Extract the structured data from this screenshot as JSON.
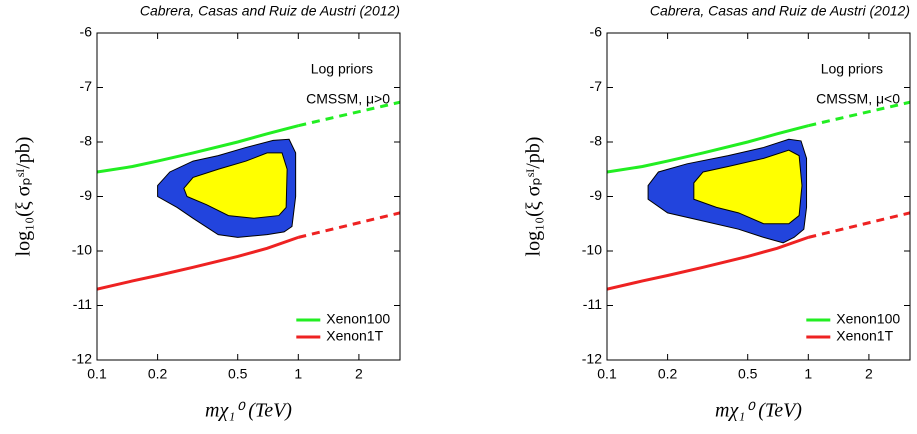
{
  "chart_data": [
    {
      "type": "line",
      "credit": "Cabrera, Casas and Ruiz de Austri (2012)",
      "annotations": [
        "Log priors",
        "CMSSM, μ>0"
      ],
      "xlabel": "mχ₁⁰ (TeV)",
      "ylabel": "log₁₀(ξ σₚˢᴵ/pb)",
      "xscale": "log",
      "xlim": [
        0.1,
        3.2
      ],
      "ylim": [
        -12,
        -6
      ],
      "xticks": [
        0.1,
        0.2,
        0.5,
        1,
        2
      ],
      "yticks": [
        -12,
        -11,
        -10,
        -9,
        -8,
        -7,
        -6
      ],
      "legend": "lower right",
      "series": [
        {
          "name": "Xenon100",
          "color": "#22ee22",
          "x": [
            0.1,
            0.15,
            0.2,
            0.3,
            0.5,
            0.7,
            1
          ],
          "values": [
            -8.55,
            -8.45,
            -8.35,
            -8.2,
            -8.0,
            -7.85,
            -7.7
          ],
          "extrapolated": {
            "x": [
              1,
              3.2
            ],
            "values": [
              -7.7,
              -7.27
            ]
          }
        },
        {
          "name": "Xenon1T",
          "color": "#ee2222",
          "x": [
            0.1,
            0.15,
            0.2,
            0.3,
            0.5,
            0.7,
            1
          ],
          "values": [
            -10.7,
            -10.55,
            -10.45,
            -10.3,
            -10.1,
            -9.95,
            -9.75
          ],
          "extrapolated": {
            "x": [
              1,
              3.2
            ],
            "values": [
              -9.75,
              -9.3
            ]
          }
        }
      ],
      "regions": [
        {
          "color": "#2244dd",
          "x": [
            0.2,
            0.23,
            0.3,
            0.4,
            0.55,
            0.75,
            0.9,
            0.97,
            0.97,
            0.93,
            0.85,
            0.7,
            0.5,
            0.4,
            0.3,
            0.25,
            0.2
          ],
          "values": [
            -8.8,
            -8.55,
            -8.35,
            -8.25,
            -8.1,
            -7.97,
            -7.95,
            -8.2,
            -9.0,
            -9.55,
            -9.65,
            -9.7,
            -9.75,
            -9.7,
            -9.4,
            -9.2,
            -9.0
          ]
        },
        {
          "color": "#ffff00",
          "x": [
            0.27,
            0.3,
            0.4,
            0.55,
            0.7,
            0.83,
            0.88,
            0.87,
            0.8,
            0.6,
            0.45,
            0.35,
            0.28
          ],
          "values": [
            -8.85,
            -8.65,
            -8.5,
            -8.35,
            -8.2,
            -8.2,
            -8.5,
            -9.2,
            -9.35,
            -9.4,
            -9.35,
            -9.15,
            -9.0
          ]
        }
      ]
    },
    {
      "type": "line",
      "credit": "Cabrera, Casas and Ruiz de Austri (2012)",
      "annotations": [
        "Log priors",
        "CMSSM, μ<0"
      ],
      "xlabel": "mχ₁⁰ (TeV)",
      "ylabel": "log₁₀(ξ σₚˢᴵ/pb)",
      "xscale": "log",
      "xlim": [
        0.1,
        3.2
      ],
      "ylim": [
        -12,
        -6
      ],
      "xticks": [
        0.1,
        0.2,
        0.5,
        1,
        2
      ],
      "yticks": [
        -12,
        -11,
        -10,
        -9,
        -8,
        -7,
        -6
      ],
      "legend": "lower right",
      "series": [
        {
          "name": "Xenon100",
          "color": "#22ee22",
          "x": [
            0.1,
            0.15,
            0.2,
            0.3,
            0.5,
            0.7,
            1
          ],
          "values": [
            -8.55,
            -8.45,
            -8.35,
            -8.2,
            -8.0,
            -7.85,
            -7.7
          ],
          "extrapolated": {
            "x": [
              1,
              3.2
            ],
            "values": [
              -7.7,
              -7.27
            ]
          }
        },
        {
          "name": "Xenon1T",
          "color": "#ee2222",
          "x": [
            0.1,
            0.15,
            0.2,
            0.3,
            0.5,
            0.7,
            1
          ],
          "values": [
            -10.7,
            -10.55,
            -10.45,
            -10.3,
            -10.1,
            -9.95,
            -9.75
          ],
          "extrapolated": {
            "x": [
              1,
              3.2
            ],
            "values": [
              -9.75,
              -9.3
            ]
          }
        }
      ],
      "regions": [
        {
          "color": "#2244dd",
          "x": [
            0.16,
            0.18,
            0.25,
            0.4,
            0.6,
            0.8,
            0.92,
            0.98,
            0.98,
            0.95,
            0.85,
            0.75,
            0.6,
            0.45,
            0.3,
            0.2,
            0.16
          ],
          "values": [
            -8.8,
            -8.55,
            -8.4,
            -8.25,
            -8.1,
            -7.95,
            -7.98,
            -8.3,
            -9.2,
            -9.6,
            -9.75,
            -9.85,
            -9.75,
            -9.6,
            -9.45,
            -9.3,
            -9.05
          ]
        },
        {
          "color": "#ffff00",
          "x": [
            0.27,
            0.3,
            0.4,
            0.6,
            0.8,
            0.9,
            0.93,
            0.9,
            0.8,
            0.6,
            0.45,
            0.35,
            0.27
          ],
          "values": [
            -8.75,
            -8.55,
            -8.45,
            -8.3,
            -8.15,
            -8.25,
            -8.8,
            -9.35,
            -9.5,
            -9.5,
            -9.3,
            -9.2,
            -9.05
          ]
        }
      ]
    }
  ]
}
